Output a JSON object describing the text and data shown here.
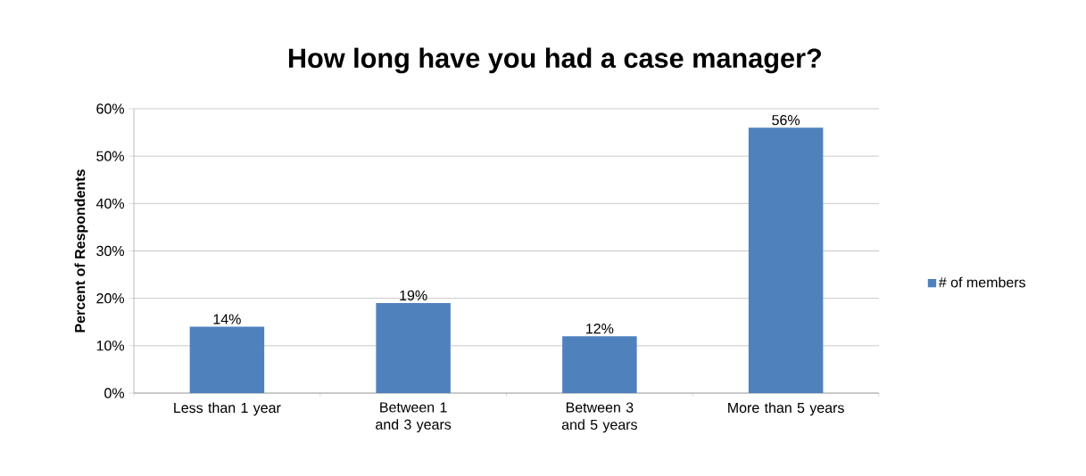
{
  "chart_data": {
    "type": "bar",
    "title": "How long have you had a case manager?",
    "ylabel": "Percent of Respondents",
    "categories": [
      "Less than 1 year",
      "Between 1 and 3 years",
      "Between 3 and 5 years",
      "More than 5 years"
    ],
    "series": [
      {
        "name": "# of members",
        "color": "#4f81bd",
        "values": [
          14,
          19,
          12,
          56
        ],
        "value_labels": [
          "14%",
          "19%",
          "12%",
          "56%"
        ]
      }
    ],
    "ylim": [
      0,
      60
    ],
    "yticks": [
      {
        "value": 0,
        "label": "0%"
      },
      {
        "value": 10,
        "label": "10%"
      },
      {
        "value": 20,
        "label": "20%"
      },
      {
        "value": 30,
        "label": "30%"
      },
      {
        "value": 40,
        "label": "40%"
      },
      {
        "value": 50,
        "label": "50%"
      },
      {
        "value": 60,
        "label": "60%"
      }
    ],
    "grid": "y",
    "legend": "right"
  }
}
